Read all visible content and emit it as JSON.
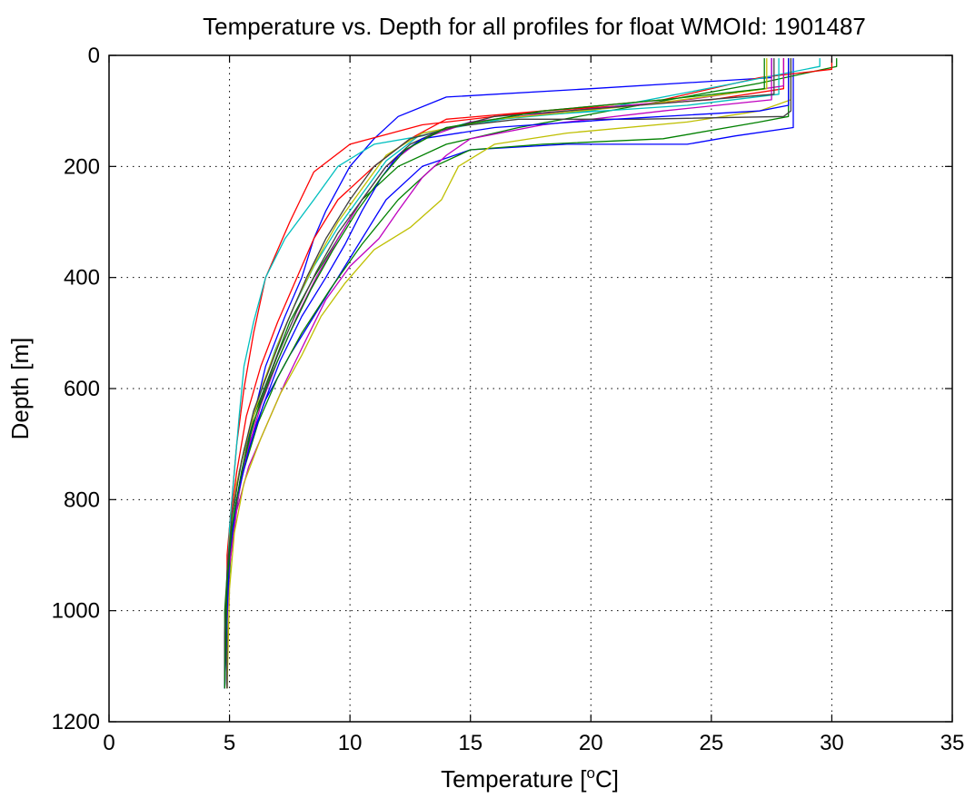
{
  "chart_data": {
    "type": "line",
    "title": "Temperature vs. Depth for all profiles for float WMOId: 1901487",
    "xlabel": "Temperature [",
    "xlabel_sup": "o",
    "xlabel_suffix": "C]",
    "ylabel": "Depth [m]",
    "xlim": [
      0,
      35
    ],
    "ylim": [
      0,
      1200
    ],
    "y_reversed": true,
    "xticks": [
      0,
      5,
      10,
      15,
      20,
      25,
      30,
      35
    ],
    "yticks": [
      0,
      200,
      400,
      600,
      800,
      1000,
      1200
    ],
    "grid": true,
    "grid_style": "dotted",
    "series": [
      {
        "color": "#0000ff",
        "points": [
          [
            27.5,
            5
          ],
          [
            27.5,
            40
          ],
          [
            20,
            60
          ],
          [
            14,
            75
          ],
          [
            12,
            110
          ],
          [
            11,
            150
          ],
          [
            10,
            200
          ],
          [
            9,
            280
          ],
          [
            8.5,
            330
          ],
          [
            8,
            400
          ],
          [
            7.3,
            470
          ],
          [
            6.5,
            560
          ],
          [
            6,
            650
          ],
          [
            5.5,
            750
          ],
          [
            5.1,
            850
          ],
          [
            4.9,
            950
          ],
          [
            4.8,
            1050
          ],
          [
            4.8,
            1140
          ]
        ]
      },
      {
        "color": "#0000ff",
        "points": [
          [
            28.4,
            5
          ],
          [
            28.4,
            90
          ],
          [
            28.4,
            130
          ],
          [
            26,
            145
          ],
          [
            24,
            160
          ],
          [
            19,
            160
          ],
          [
            15,
            170
          ],
          [
            13,
            200
          ],
          [
            11.5,
            260
          ],
          [
            10.5,
            330
          ],
          [
            9.5,
            400
          ],
          [
            8.5,
            470
          ],
          [
            7.5,
            540
          ],
          [
            6.5,
            620
          ],
          [
            5.8,
            700
          ],
          [
            5.3,
            800
          ],
          [
            5.0,
            900
          ],
          [
            4.9,
            1000
          ],
          [
            4.8,
            1140
          ]
        ]
      },
      {
        "color": "#008000",
        "points": [
          [
            30.2,
            5
          ],
          [
            30.2,
            20
          ],
          [
            27,
            50
          ],
          [
            22,
            90
          ],
          [
            17,
            130
          ],
          [
            14,
            160
          ],
          [
            12,
            200
          ],
          [
            10.5,
            260
          ],
          [
            9.5,
            330
          ],
          [
            8.5,
            400
          ],
          [
            7.5,
            480
          ],
          [
            6.8,
            560
          ],
          [
            6,
            650
          ],
          [
            5.4,
            750
          ],
          [
            5.0,
            870
          ],
          [
            4.8,
            1000
          ],
          [
            4.8,
            1140
          ]
        ]
      },
      {
        "color": "#008000",
        "points": [
          [
            28.2,
            5
          ],
          [
            28.2,
            110
          ],
          [
            27,
            120
          ],
          [
            23,
            150
          ],
          [
            18,
            160
          ],
          [
            15,
            170
          ],
          [
            13.5,
            200
          ],
          [
            12,
            260
          ],
          [
            10.5,
            340
          ],
          [
            9.2,
            420
          ],
          [
            8,
            500
          ],
          [
            7,
            580
          ],
          [
            6.2,
            660
          ],
          [
            5.5,
            760
          ],
          [
            5.1,
            870
          ],
          [
            4.9,
            1000
          ],
          [
            4.9,
            1140
          ]
        ]
      },
      {
        "color": "#ff0000",
        "points": [
          [
            30,
            5
          ],
          [
            30,
            25
          ],
          [
            27,
            40
          ],
          [
            23,
            80
          ],
          [
            18,
            100
          ],
          [
            13,
            125
          ],
          [
            10,
            160
          ],
          [
            8.5,
            210
          ],
          [
            7.5,
            300
          ],
          [
            6.5,
            400
          ],
          [
            6,
            500
          ],
          [
            5.6,
            600
          ],
          [
            5.3,
            700
          ],
          [
            5.1,
            800
          ],
          [
            4.9,
            900
          ],
          [
            4.9,
            1000
          ],
          [
            4.9,
            1140
          ]
        ]
      },
      {
        "color": "#ff0000",
        "points": [
          [
            28,
            5
          ],
          [
            28,
            60
          ],
          [
            25,
            80
          ],
          [
            18,
            100
          ],
          [
            14,
            115
          ],
          [
            12.5,
            150
          ],
          [
            11,
            200
          ],
          [
            9.5,
            260
          ],
          [
            8.5,
            330
          ],
          [
            7.8,
            400
          ],
          [
            7,
            480
          ],
          [
            6.3,
            560
          ],
          [
            5.7,
            650
          ],
          [
            5.3,
            750
          ],
          [
            5.0,
            850
          ],
          [
            4.9,
            950
          ],
          [
            4.8,
            1140
          ]
        ]
      },
      {
        "color": "#00bfbf",
        "points": [
          [
            29.5,
            5
          ],
          [
            29.5,
            20
          ],
          [
            26,
            50
          ],
          [
            20,
            100
          ],
          [
            15,
            120
          ],
          [
            13,
            145
          ],
          [
            11,
            160
          ],
          [
            9.5,
            200
          ],
          [
            8.5,
            260
          ],
          [
            7.3,
            330
          ],
          [
            6.5,
            400
          ],
          [
            6,
            480
          ],
          [
            5.6,
            560
          ],
          [
            5.4,
            650
          ],
          [
            5.2,
            750
          ],
          [
            5.0,
            850
          ],
          [
            4.9,
            950
          ],
          [
            4.8,
            1140
          ]
        ]
      },
      {
        "color": "#00bfbf",
        "points": [
          [
            27.8,
            5
          ],
          [
            27.8,
            70
          ],
          [
            24,
            90
          ],
          [
            17,
            110
          ],
          [
            13,
            140
          ],
          [
            11.5,
            190
          ],
          [
            10.5,
            250
          ],
          [
            9.5,
            310
          ],
          [
            8.5,
            380
          ],
          [
            7.7,
            450
          ],
          [
            6.9,
            530
          ],
          [
            6.2,
            620
          ],
          [
            5.6,
            710
          ],
          [
            5.2,
            800
          ],
          [
            5.0,
            900
          ],
          [
            4.9,
            1000
          ],
          [
            4.9,
            1140
          ]
        ]
      },
      {
        "color": "#bf00bf",
        "points": [
          [
            27.5,
            5
          ],
          [
            27.5,
            80
          ],
          [
            23,
            100
          ],
          [
            18,
            125
          ],
          [
            15,
            150
          ],
          [
            14,
            180
          ],
          [
            13,
            220
          ],
          [
            12,
            280
          ],
          [
            11.2,
            330
          ],
          [
            10,
            380
          ],
          [
            9,
            440
          ],
          [
            8.2,
            510
          ],
          [
            7.3,
            590
          ],
          [
            6.5,
            670
          ],
          [
            5.8,
            740
          ],
          [
            5.3,
            820
          ],
          [
            5.0,
            920
          ],
          [
            4.9,
            1020
          ],
          [
            4.9,
            1140
          ]
        ]
      },
      {
        "color": "#bf00bf",
        "points": [
          [
            28,
            5
          ],
          [
            28,
            55
          ],
          [
            24,
            80
          ],
          [
            19,
            100
          ],
          [
            15,
            120
          ],
          [
            13,
            150
          ],
          [
            11.5,
            200
          ],
          [
            10.5,
            260
          ],
          [
            9.5,
            330
          ],
          [
            8.6,
            400
          ],
          [
            7.8,
            470
          ],
          [
            7,
            550
          ],
          [
            6.3,
            630
          ],
          [
            5.7,
            720
          ],
          [
            5.3,
            810
          ],
          [
            5.0,
            910
          ],
          [
            4.9,
            1010
          ],
          [
            4.9,
            1140
          ]
        ]
      },
      {
        "color": "#bfbf00",
        "points": [
          [
            28.3,
            5
          ],
          [
            28.3,
            80
          ],
          [
            27,
            100
          ],
          [
            24,
            120
          ],
          [
            19,
            140
          ],
          [
            16,
            160
          ],
          [
            14.5,
            200
          ],
          [
            13.8,
            260
          ],
          [
            12.5,
            310
          ],
          [
            11,
            350
          ],
          [
            9.8,
            410
          ],
          [
            8.8,
            470
          ],
          [
            8,
            540
          ],
          [
            7.1,
            610
          ],
          [
            6.3,
            690
          ],
          [
            5.6,
            770
          ],
          [
            5.2,
            860
          ],
          [
            5.0,
            960
          ],
          [
            4.9,
            1140
          ]
        ]
      },
      {
        "color": "#bfbf00",
        "points": [
          [
            27.3,
            5
          ],
          [
            27.3,
            60
          ],
          [
            22,
            90
          ],
          [
            16,
            115
          ],
          [
            13,
            140
          ],
          [
            11.5,
            180
          ],
          [
            10.5,
            240
          ],
          [
            9.5,
            300
          ],
          [
            8.6,
            370
          ],
          [
            7.8,
            440
          ],
          [
            7.1,
            510
          ],
          [
            6.4,
            590
          ],
          [
            5.8,
            680
          ],
          [
            5.3,
            770
          ],
          [
            5.0,
            870
          ],
          [
            4.9,
            980
          ],
          [
            4.9,
            1140
          ]
        ]
      },
      {
        "color": "#404040",
        "points": [
          [
            28.3,
            5
          ],
          [
            28.3,
            100
          ],
          [
            28,
            110
          ],
          [
            22,
            115
          ],
          [
            17,
            115
          ],
          [
            14,
            130
          ],
          [
            12.5,
            160
          ],
          [
            11.5,
            200
          ],
          [
            10.5,
            260
          ],
          [
            9.5,
            320
          ],
          [
            8.6,
            390
          ],
          [
            7.8,
            460
          ],
          [
            7,
            540
          ],
          [
            6.3,
            620
          ],
          [
            5.7,
            710
          ],
          [
            5.3,
            800
          ],
          [
            5.0,
            900
          ],
          [
            4.9,
            1000
          ],
          [
            4.9,
            1140
          ]
        ]
      },
      {
        "color": "#404040",
        "points": [
          [
            27.6,
            5
          ],
          [
            27.6,
            70
          ],
          [
            22,
            90
          ],
          [
            16,
            110
          ],
          [
            12.5,
            150
          ],
          [
            11,
            200
          ],
          [
            10,
            260
          ],
          [
            9,
            330
          ],
          [
            8.2,
            400
          ],
          [
            7.4,
            480
          ],
          [
            6.7,
            560
          ],
          [
            6,
            640
          ],
          [
            5.5,
            730
          ],
          [
            5.1,
            830
          ],
          [
            4.9,
            930
          ],
          [
            4.8,
            1040
          ],
          [
            4.8,
            1140
          ]
        ]
      },
      {
        "color": "#0000ff",
        "points": [
          [
            28.2,
            5
          ],
          [
            28.2,
            90
          ],
          [
            27,
            100
          ],
          [
            21,
            115
          ],
          [
            16,
            130
          ],
          [
            13,
            150
          ],
          [
            12,
            180
          ],
          [
            11.3,
            220
          ],
          [
            10.5,
            280
          ],
          [
            9.8,
            340
          ],
          [
            9,
            400
          ],
          [
            8,
            470
          ],
          [
            7.1,
            550
          ],
          [
            6.4,
            630
          ],
          [
            5.8,
            710
          ],
          [
            5.3,
            800
          ],
          [
            5.0,
            900
          ],
          [
            4.9,
            1000
          ],
          [
            4.8,
            1140
          ]
        ]
      },
      {
        "color": "#008000",
        "points": [
          [
            27.2,
            5
          ],
          [
            27.2,
            60
          ],
          [
            23,
            80
          ],
          [
            18,
            100
          ],
          [
            14,
            130
          ],
          [
            12.3,
            170
          ],
          [
            11.3,
            220
          ],
          [
            10.3,
            280
          ],
          [
            9.3,
            350
          ],
          [
            8.4,
            420
          ],
          [
            7.5,
            500
          ],
          [
            6.7,
            580
          ],
          [
            6,
            660
          ],
          [
            5.5,
            750
          ],
          [
            5.1,
            850
          ],
          [
            4.9,
            950
          ],
          [
            4.8,
            1140
          ]
        ]
      }
    ]
  }
}
